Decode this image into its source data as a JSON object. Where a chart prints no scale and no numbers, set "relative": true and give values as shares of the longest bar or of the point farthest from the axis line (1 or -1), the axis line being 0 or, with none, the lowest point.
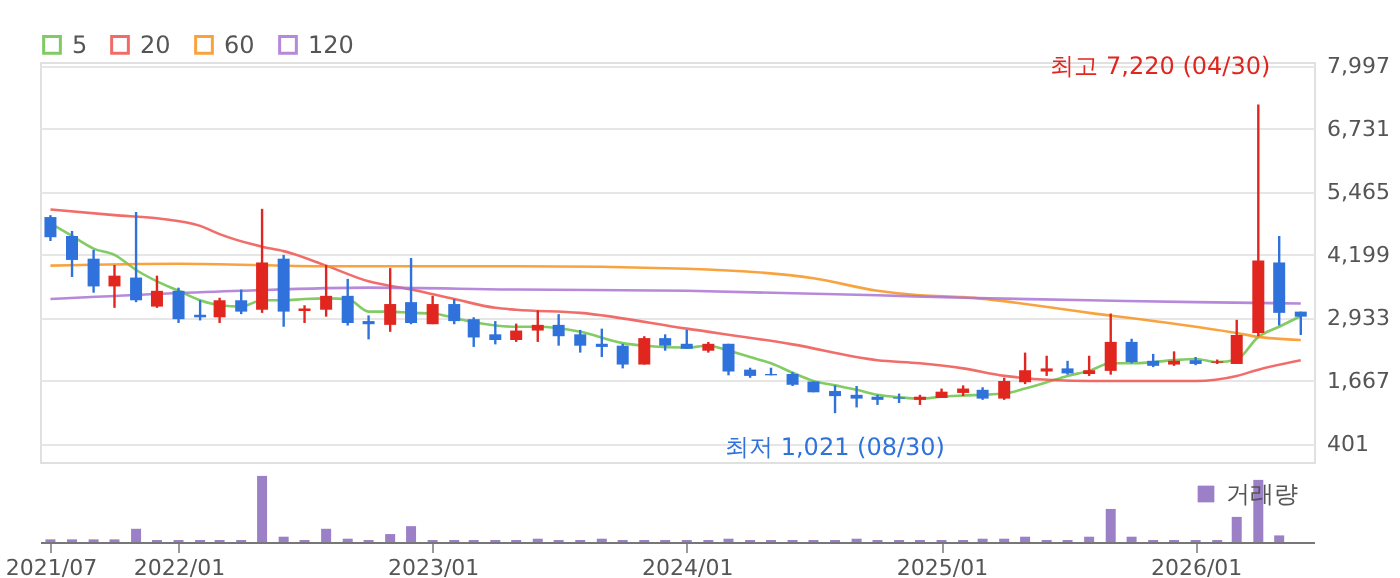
{
  "chart_data": [
    {
      "type": "candlestick",
      "x": [
        "2021-07",
        "2021-08",
        "2021-09",
        "2021-10",
        "2021-11",
        "2021-12",
        "2022-01",
        "2022-02",
        "2022-03",
        "2022-04",
        "2022-05",
        "2022-06",
        "2022-07",
        "2022-08",
        "2022-09",
        "2022-10",
        "2022-11",
        "2022-12",
        "2023-01",
        "2023-02",
        "2023-03",
        "2023-04",
        "2023-05",
        "2023-06",
        "2023-07",
        "2023-08",
        "2023-09",
        "2023-10",
        "2023-11",
        "2023-12",
        "2024-01",
        "2024-02",
        "2024-03",
        "2024-04",
        "2024-05",
        "2024-06",
        "2024-07",
        "2024-08",
        "2024-09",
        "2024-10",
        "2024-11",
        "2024-12",
        "2025-01",
        "2025-02",
        "2025-03",
        "2025-04",
        "2025-05",
        "2025-06",
        "2025-07",
        "2025-08",
        "2025-09",
        "2025-10",
        "2025-11",
        "2025-12",
        "2026-01",
        "2026-02",
        "2026-03",
        "2026-04",
        "2026-05",
        "2026-06"
      ],
      "ohlc": [
        [
          4959,
          4997,
          4478,
          4554
        ],
        [
          4579,
          4680,
          3756,
          4098
        ],
        [
          4123,
          4301,
          3440,
          3566
        ],
        [
          3566,
          3997,
          3136,
          3782
        ],
        [
          3744,
          5060,
          3250,
          3288
        ],
        [
          3161,
          3782,
          3136,
          3478
        ],
        [
          3478,
          3541,
          2832,
          2908
        ],
        [
          2997,
          3288,
          2883,
          2946
        ],
        [
          2946,
          3338,
          2832,
          3288
        ],
        [
          3288,
          3503,
          3009,
          3060
        ],
        [
          3098,
          5124,
          3035,
          4047
        ],
        [
          4123,
          4199,
          2756,
          3060
        ],
        [
          3073,
          3187,
          2832,
          3123
        ],
        [
          3098,
          3997,
          2959,
          3377
        ],
        [
          3377,
          3718,
          2781,
          2832
        ],
        [
          2870,
          2984,
          2503,
          2807
        ],
        [
          2794,
          3934,
          2655,
          3212
        ],
        [
          3250,
          4136,
          2807,
          2832
        ],
        [
          2807,
          3377,
          2807,
          3212
        ],
        [
          3212,
          3313,
          2807,
          2870
        ],
        [
          2908,
          2946,
          2351,
          2541
        ],
        [
          2604,
          2870,
          2402,
          2490
        ],
        [
          2490,
          2819,
          2452,
          2680
        ],
        [
          2680,
          3085,
          2452,
          2794
        ],
        [
          2794,
          3009,
          2376,
          2566
        ],
        [
          2604,
          2693,
          2237,
          2376
        ],
        [
          2414,
          2718,
          2148,
          2351
        ],
        [
          2376,
          2414,
          1920,
          1997
        ],
        [
          1997,
          2566,
          1997,
          2528
        ],
        [
          2528,
          2604,
          2275,
          2376
        ],
        [
          2414,
          2693,
          2313,
          2313
        ],
        [
          2275,
          2452,
          2237,
          2414
        ],
        [
          2414,
          2414,
          1781,
          1857
        ],
        [
          1895,
          1933,
          1731,
          1769
        ],
        [
          1807,
          1933,
          1781,
          1781
        ],
        [
          1807,
          1845,
          1566,
          1591
        ],
        [
          1655,
          1655,
          1440,
          1440
        ],
        [
          1465,
          1579,
          1021,
          1363
        ],
        [
          1389,
          1566,
          1136,
          1313
        ],
        [
          1351,
          1389,
          1186,
          1288
        ],
        [
          1338,
          1414,
          1224,
          1313
        ],
        [
          1288,
          1389,
          1186,
          1351
        ],
        [
          1326,
          1515,
          1326,
          1452
        ],
        [
          1427,
          1579,
          1363,
          1515
        ],
        [
          1490,
          1541,
          1288,
          1313
        ],
        [
          1313,
          1731,
          1288,
          1667
        ],
        [
          1642,
          2237,
          1604,
          1883
        ],
        [
          1857,
          2174,
          1769,
          1920
        ],
        [
          1920,
          2072,
          1794,
          1819
        ],
        [
          1807,
          2174,
          1769,
          1883
        ],
        [
          1870,
          3022,
          1794,
          2452
        ],
        [
          2452,
          2515,
          2022,
          2047
        ],
        [
          2072,
          2212,
          1946,
          1971
        ],
        [
          1997,
          2262,
          1971,
          2072
        ],
        [
          2085,
          2148,
          1984,
          2009
        ],
        [
          2034,
          2098,
          2009,
          2060
        ],
        [
          2009,
          2895,
          2009,
          2591
        ],
        [
          2629,
          7220,
          2566,
          4085
        ],
        [
          4047,
          4579,
          2781,
          3035
        ],
        [
          3060,
          3060,
          2591,
          2959
        ]
      ],
      "colors": [
        "#2f72dc",
        "#2f72dc",
        "#2f72dc",
        "#e0261f",
        "#2f72dc",
        "#e0261f",
        "#2f72dc",
        "#2f72dc",
        "#e0261f",
        "#2f72dc",
        "#e0261f",
        "#2f72dc",
        "#e0261f",
        "#e0261f",
        "#2f72dc",
        "#2f72dc",
        "#e0261f",
        "#2f72dc",
        "#e0261f",
        "#2f72dc",
        "#2f72dc",
        "#2f72dc",
        "#e0261f",
        "#e0261f",
        "#2f72dc",
        "#2f72dc",
        "#2f72dc",
        "#2f72dc",
        "#e0261f",
        "#2f72dc",
        "#2f72dc",
        "#e0261f",
        "#2f72dc",
        "#2f72dc",
        "#2f72dc",
        "#2f72dc",
        "#2f72dc",
        "#2f72dc",
        "#2f72dc",
        "#2f72dc",
        "#2f72dc",
        "#e0261f",
        "#e0261f",
        "#e0261f",
        "#2f72dc",
        "#e0261f",
        "#e0261f",
        "#e0261f",
        "#2f72dc",
        "#e0261f",
        "#e0261f",
        "#2f72dc",
        "#2f72dc",
        "#e0261f",
        "#2f72dc",
        "#e0261f",
        "#e0261f",
        "#e0261f",
        "#2f72dc",
        "#2f72dc"
      ],
      "series": [
        {
          "name": "5",
          "type": "line",
          "color": "#6cc24a",
          "x": [
            "2021-07",
            "2021-08",
            "2021-09",
            "2021-10",
            "2021-11",
            "2021-12",
            "2022-01",
            "2022-02",
            "2022-03",
            "2022-04",
            "2022-05",
            "2022-06",
            "2022-07",
            "2022-08",
            "2022-09",
            "2022-10",
            "2022-11",
            "2022-12",
            "2023-01",
            "2023-02",
            "2023-03",
            "2023-04",
            "2023-05",
            "2023-06",
            "2023-08",
            "2023-10",
            "2023-11",
            "2024-01",
            "2024-02",
            "2024-03",
            "2024-04",
            "2024-05",
            "2024-06",
            "2024-07",
            "2024-08",
            "2024-09",
            "2024-10",
            "2024-11",
            "2024-12",
            "2025-01",
            "2025-02",
            "2025-03",
            "2025-04",
            "2025-05",
            "2025-06",
            "2025-07",
            "2025-08",
            "2025-09",
            "2025-10",
            "2025-11",
            "2025-12",
            "2026-01",
            "2026-02",
            "2026-03",
            "2026-04",
            "2026-05",
            "2026-06"
          ],
          "values": [
            4832,
            4579,
            4326,
            4199,
            3896,
            3668,
            3478,
            3288,
            3187,
            3161,
            3288,
            3288,
            3313,
            3326,
            3313,
            3060,
            3060,
            3035,
            3022,
            2933,
            2845,
            2781,
            2756,
            2756,
            2655,
            2427,
            2376,
            2338,
            2376,
            2275,
            2148,
            2022,
            1832,
            1667,
            1579,
            1490,
            1389,
            1338,
            1313,
            1350,
            1376,
            1389,
            1414,
            1515,
            1642,
            1769,
            1870,
            2022,
            2022,
            2047,
            2085,
            2110,
            2047,
            2098,
            2553,
            2756,
            2972
          ]
        },
        {
          "name": "20",
          "type": "line",
          "color": "#ef5350",
          "x": [
            "2021-07",
            "2021-10",
            "2021-12",
            "2022-02",
            "2022-03",
            "2022-05",
            "2022-06",
            "2022-08",
            "2022-10",
            "2022-12",
            "2023-02",
            "2023-04",
            "2023-05",
            "2023-08",
            "2024-01",
            "2024-06",
            "2024-10",
            "2024-12",
            "2025-02",
            "2025-04",
            "2025-08",
            "2026-01",
            "2026-03",
            "2026-04",
            "2026-06"
          ],
          "values": [
            5111,
            4997,
            4934,
            4782,
            4617,
            4364,
            4275,
            3984,
            3668,
            3503,
            3313,
            3136,
            3098,
            3035,
            2718,
            2402,
            2085,
            2022,
            1920,
            1769,
            1667,
            1667,
            1769,
            1895,
            2085
          ]
        },
        {
          "name": "60",
          "type": "line",
          "color": "#f7931e",
          "x": [
            "2021-07",
            "2022-01",
            "2022-08",
            "2023-05",
            "2024-01",
            "2024-07",
            "2024-10",
            "2024-12",
            "2025-02",
            "2025-08",
            "2026-01",
            "2026-03",
            "2026-04",
            "2026-06"
          ],
          "values": [
            3984,
            4022,
            3971,
            3971,
            3921,
            3731,
            3478,
            3389,
            3351,
            3035,
            2756,
            2630,
            2553,
            2490
          ]
        },
        {
          "name": "120",
          "type": "line",
          "color": "#a974d4",
          "x": [
            "2021-07",
            "2022-04",
            "2022-10",
            "2023-05",
            "2024-01",
            "2024-10",
            "2025-02",
            "2025-08",
            "2026-01",
            "2026-06"
          ],
          "values": [
            3313,
            3478,
            3541,
            3503,
            3478,
            3389,
            3338,
            3288,
            3250,
            3224
          ]
        }
      ],
      "xlim": [
        "2021-06-16",
        "2026-06-20"
      ],
      "xticks": [
        {
          "value": "2021-07",
          "label": null
        },
        {
          "value": "2022-01",
          "label": null
        },
        {
          "value": "2023-01",
          "label": null
        },
        {
          "value": "2024-01",
          "label": null
        },
        {
          "value": "2025-01",
          "label": null
        },
        {
          "value": "2026-01",
          "label": null
        }
      ],
      "ylim": [
        40,
        8073
      ],
      "yticks": [
        {
          "value": 401,
          "label": "401"
        },
        {
          "value": 1667,
          "label": "1,667"
        },
        {
          "value": 2933,
          "label": "2,933"
        },
        {
          "value": 4199,
          "label": "4,199"
        },
        {
          "value": 5465,
          "label": "5,465"
        },
        {
          "value": 6731,
          "label": "6,731"
        },
        {
          "value": 7997,
          "label": "7,997"
        }
      ],
      "tick_labels": "y",
      "grid": true,
      "legend": "top left",
      "annotations": [
        {
          "text": "최고 7,220 (04/30)",
          "x": "2026-04",
          "y": 7220
        },
        {
          "text": "최저 1,021 (08/30)",
          "x": "2024-08",
          "y": 1021
        }
      ]
    },
    {
      "type": "bar",
      "relative": true,
      "x": [
        "2021-07",
        "2021-08",
        "2021-09",
        "2021-10",
        "2021-11",
        "2021-12",
        "2022-01",
        "2022-02",
        "2022-03",
        "2022-04",
        "2022-05",
        "2022-06",
        "2022-07",
        "2022-08",
        "2022-09",
        "2022-10",
        "2022-11",
        "2022-12",
        "2023-01",
        "2023-02",
        "2023-03",
        "2023-04",
        "2023-05",
        "2023-06",
        "2023-07",
        "2023-08",
        "2023-09",
        "2023-10",
        "2023-11",
        "2023-12",
        "2024-01",
        "2024-02",
        "2024-03",
        "2024-04",
        "2024-05",
        "2024-06",
        "2024-07",
        "2024-08",
        "2024-09",
        "2024-10",
        "2024-11",
        "2024-12",
        "2025-01",
        "2025-02",
        "2025-03",
        "2025-04",
        "2025-05",
        "2025-06",
        "2025-07",
        "2025-08",
        "2025-09",
        "2025-10",
        "2025-11",
        "2025-12",
        "2026-01",
        "2026-02",
        "2026-03",
        "2026-04",
        "2026-05"
      ],
      "series": [
        {
          "name": "거래량",
          "color": "#9b80c8",
          "values": [
            0.04,
            0.04,
            0.04,
            0.04,
            0.2,
            0.03,
            0.03,
            0.03,
            0.03,
            0.03,
            1,
            0.08,
            0.03,
            0.2,
            0.05,
            0.03,
            0.12,
            0.24,
            0.03,
            0.03,
            0.03,
            0.03,
            0.03,
            0.05,
            0.03,
            0.03,
            0.05,
            0.03,
            0.03,
            0.03,
            0.03,
            0.03,
            0.05,
            0.03,
            0.03,
            0.03,
            0.03,
            0.03,
            0.05,
            0.03,
            0.03,
            0.03,
            0.03,
            0.03,
            0.05,
            0.05,
            0.08,
            0.03,
            0.03,
            0.08,
            0.5,
            0.08,
            0.03,
            0.03,
            0.03,
            0.03,
            0.38,
            0.94,
            0.1
          ]
        }
      ],
      "xlim": [
        "2021-06-16",
        "2026-06-20"
      ],
      "xticks": [
        {
          "value": "2021-07",
          "label": "2021/07"
        },
        {
          "value": "2022-01",
          "label": "2022/01"
        },
        {
          "value": "2023-01",
          "label": "2023/01"
        },
        {
          "value": "2024-01",
          "label": "2024/01"
        },
        {
          "value": "2025-01",
          "label": "2025/01"
        },
        {
          "value": "2026-01",
          "label": "2026/01"
        }
      ],
      "tick_labels": "x",
      "grid": false,
      "legend": "top right"
    }
  ]
}
